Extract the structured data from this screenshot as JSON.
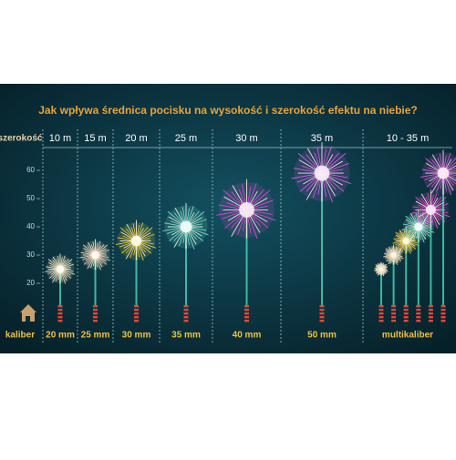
{
  "chart_data": {
    "type": "firework",
    "title": "Jak wpływa średnica pocisku na wysokość i szerokość efektu na niebie?",
    "width_axis_label": "szerokość",
    "widths": [
      "10 m",
      "15 m",
      "20 m",
      "25 m",
      "30 m",
      "35 m",
      "10 - 35 m"
    ],
    "x_axis_label": "kaliber",
    "categories": [
      "20 mm",
      "25 mm",
      "30 mm",
      "35 mm",
      "40 mm",
      "50 mm",
      "multikaliber"
    ],
    "values": [
      25,
      30,
      35,
      40,
      46,
      59,
      null
    ],
    "colors": [
      "#f3e2c0",
      "#f7d9b8",
      "#f3d23a",
      "#7fe8d8",
      "#e04ed0",
      "#e060e8",
      "#e060e8"
    ],
    "ylim": [
      0,
      60
    ],
    "yticks": [
      20,
      30,
      40,
      50,
      60
    ]
  }
}
